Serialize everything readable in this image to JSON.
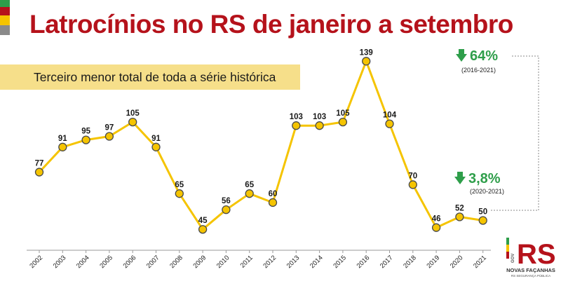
{
  "header": {
    "title": "Latrocínios no RS de janeiro a setembro",
    "subtitle": "Terceiro menor total de toda a série histórica",
    "flag_colors": [
      "#2e9e4a",
      "#b5121b",
      "#f5c400",
      "#8a8a8a"
    ]
  },
  "stats": [
    {
      "icon": "arrow-down-icon",
      "value": "64%",
      "period": "(2016-2021)"
    },
    {
      "icon": "arrow-down-icon",
      "value": "3,8%",
      "period": "(2020-2021)"
    }
  ],
  "logo": {
    "mark": "RS",
    "vertical_text": "GOV",
    "line1": "NOVAS FAÇANHAS",
    "line2": "RS SEGURANÇA PÚBLICA"
  },
  "colors": {
    "line": "#f5c400",
    "marker_fill": "#f5c400",
    "marker_stroke": "#4a4a4a",
    "bracket": "#8a8a8a",
    "title": "#b5121b",
    "stat": "#2e9e4a"
  },
  "chart_data": {
    "type": "line",
    "title": "Latrocínios no RS de janeiro a setembro",
    "subtitle": "Terceiro menor total de toda a série histórica",
    "xlabel": "",
    "ylabel": "",
    "ylim": [
      40,
      145
    ],
    "grid": false,
    "categories": [
      "2002",
      "2003",
      "2004",
      "2005",
      "2006",
      "2007",
      "2008",
      "2009",
      "2010",
      "2011",
      "2012",
      "2013",
      "2014",
      "2015",
      "2016",
      "2017",
      "2018",
      "2019",
      "2020",
      "2021"
    ],
    "series": [
      {
        "values": [
          77,
          91,
          95,
          97,
          105,
          91,
          65,
          45,
          56,
          65,
          60,
          103,
          103,
          105,
          139,
          104,
          70,
          46,
          52,
          50
        ]
      }
    ]
  }
}
